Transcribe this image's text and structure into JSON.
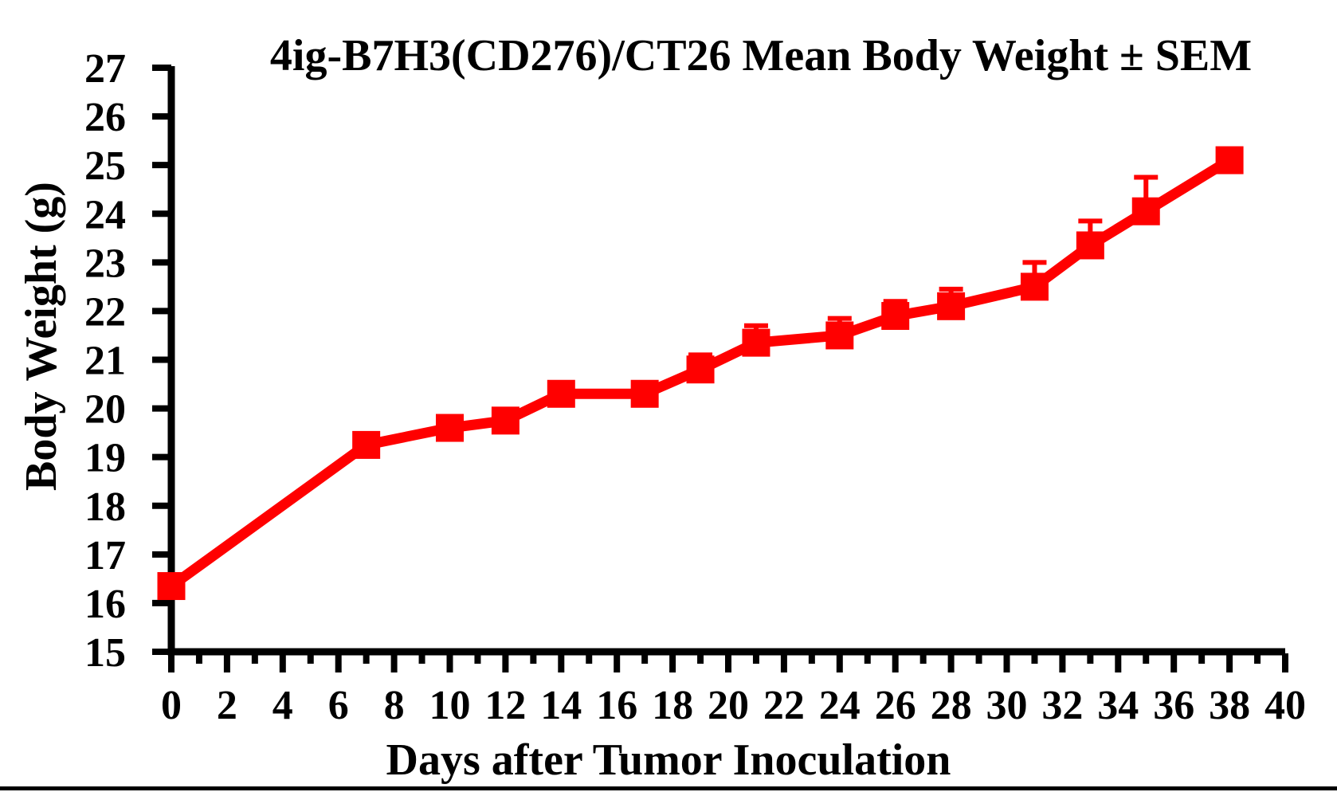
{
  "figure": {
    "background": "#ffffff",
    "bottom_rule_color": "#000000"
  },
  "chart_data": {
    "type": "line",
    "title": "4ig-B7H3(CD276)/CT26 Mean Body Weight ± SEM",
    "xlabel": "Days after Tumor Inoculation",
    "ylabel": "Body Weight (g)",
    "xlim": [
      0,
      40
    ],
    "ylim": [
      15,
      27
    ],
    "grid": false,
    "legend": "none",
    "axis_color": "#000000",
    "x_major_ticks": [
      0,
      2,
      4,
      6,
      8,
      10,
      12,
      14,
      16,
      18,
      20,
      22,
      24,
      26,
      28,
      30,
      32,
      34,
      36,
      38,
      40
    ],
    "x_minor_tick_step": 1,
    "y_ticks": [
      15,
      16,
      17,
      18,
      19,
      20,
      21,
      22,
      23,
      24,
      25,
      26,
      27
    ],
    "series": [
      {
        "name": "Mean Body Weight ± SEM",
        "color": "#ff0000",
        "marker": "filled-square",
        "error_bars": "upper",
        "x": [
          0,
          7,
          10,
          12,
          14,
          17,
          19,
          21,
          24,
          26,
          28,
          31,
          33,
          35,
          38
        ],
        "y": [
          16.35,
          19.25,
          19.6,
          19.75,
          20.3,
          20.3,
          20.8,
          21.35,
          21.5,
          21.9,
          22.1,
          22.5,
          23.35,
          24.05,
          25.1
        ],
        "sem": [
          0,
          0,
          0,
          0,
          0,
          0,
          0.3,
          0.35,
          0.35,
          0.3,
          0.35,
          0.5,
          0.5,
          0.7,
          0
        ]
      }
    ]
  }
}
